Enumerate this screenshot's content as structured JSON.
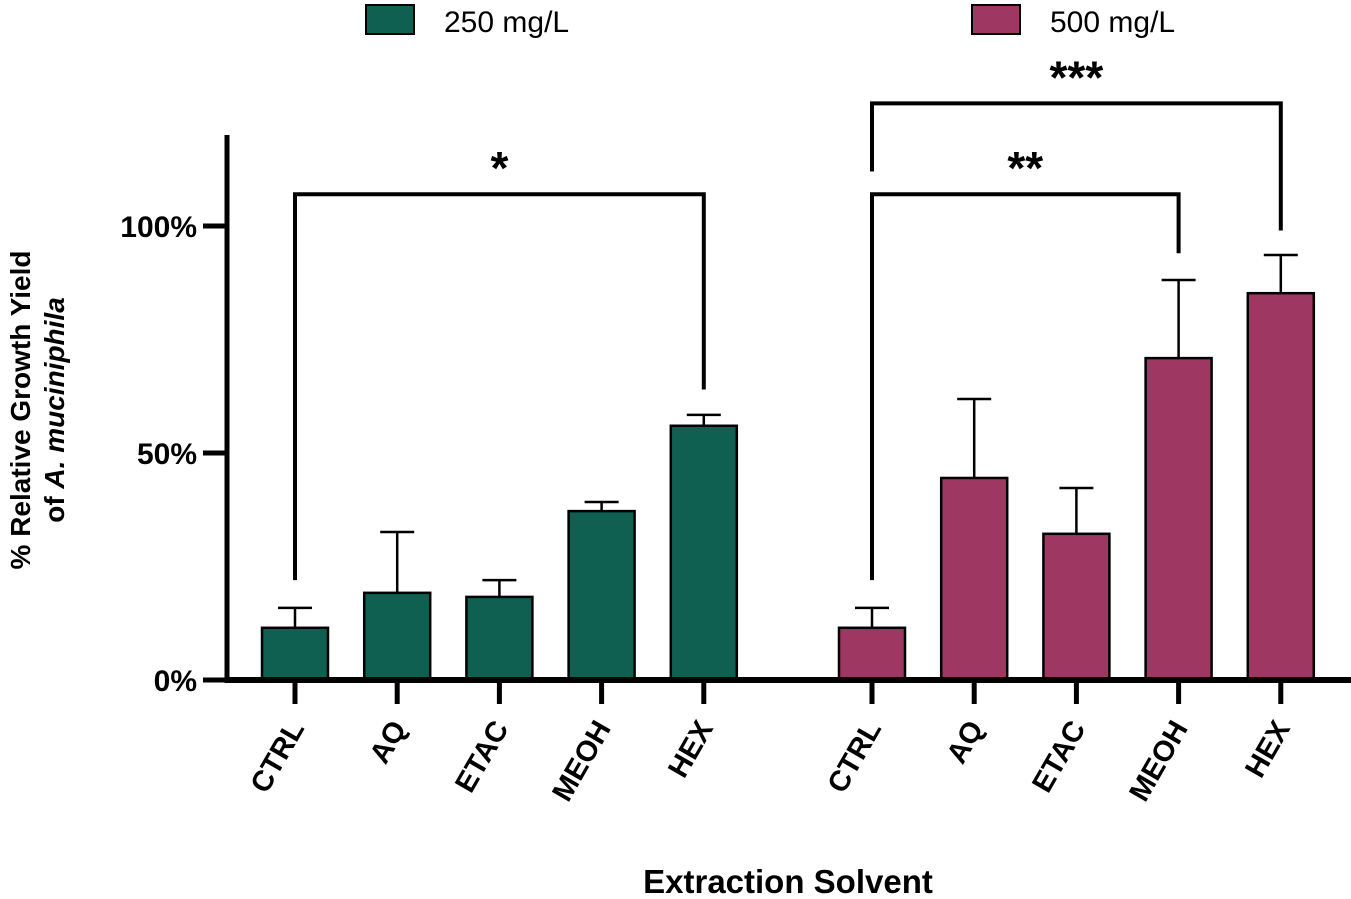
{
  "chart_data": {
    "type": "bar",
    "title": "",
    "xlabel": "Extraction Solvent",
    "ylabel": "% Relative Growth Yield",
    "ylabel_line2_prefix": "of ",
    "ylabel_line2_italic": "A. muciniphila",
    "ylim": [
      0,
      120
    ],
    "yticks": [
      0,
      50,
      100
    ],
    "ytick_labels": [
      "0%",
      "50%",
      "100%"
    ],
    "grid": false,
    "legend_position": "top",
    "categories": [
      "CTRL",
      "AQ",
      "ETAC",
      "MEOH",
      "HEX"
    ],
    "series": [
      {
        "name": "250 mg/L",
        "color": "#106052",
        "values": [
          11.5,
          19.2,
          18.3,
          37.2,
          56.0
        ],
        "error_upper": [
          15.9,
          32.6,
          22.0,
          39.2,
          58.4
        ]
      },
      {
        "name": "500 mg/L",
        "color": "#9e3863",
        "values": [
          11.5,
          44.5,
          32.2,
          70.9,
          85.2
        ],
        "error_upper": [
          15.9,
          61.9,
          42.3,
          88.1,
          93.6
        ]
      }
    ],
    "significance": [
      {
        "series": 0,
        "from": "CTRL",
        "to": "HEX",
        "label": "*",
        "level": 107,
        "left_end": 22,
        "right_end": 64
      },
      {
        "series": 1,
        "from": "CTRL",
        "to": "MEOH",
        "label": "**",
        "level": 107,
        "left_end": 22,
        "right_end": 94
      },
      {
        "series": 1,
        "from": "CTRL",
        "to": "HEX",
        "label": "***",
        "level": 127,
        "left_end": 112,
        "right_end": 99
      }
    ]
  }
}
